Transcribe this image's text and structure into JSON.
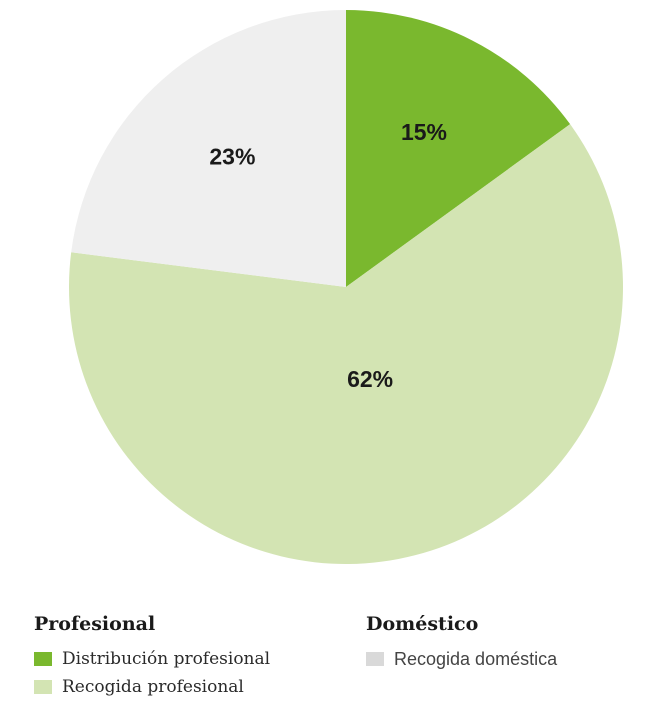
{
  "chart_data": {
    "type": "pie",
    "slices": [
      {
        "label": "Distribución profesional",
        "value": 15,
        "display": "15%",
        "color": "#7ab82e"
      },
      {
        "label": "Recogida profesional",
        "value": 62,
        "display": "62%",
        "color": "#d3e4b3"
      },
      {
        "label": "Recogida doméstica",
        "value": 23,
        "display": "23%",
        "color": "#efefef"
      }
    ],
    "start_angle_deg": 0,
    "direction": "clockwise"
  },
  "legend": {
    "profesional": {
      "title": "Profesional",
      "items": [
        {
          "label": "Distribución profesional",
          "color": "#7ab82e"
        },
        {
          "label": "Recogida profesional",
          "color": "#d3e4b3"
        }
      ]
    },
    "domestico": {
      "title": "Doméstico",
      "items": [
        {
          "label": "Recogida doméstica",
          "color": "#d9d9d9"
        }
      ]
    }
  }
}
